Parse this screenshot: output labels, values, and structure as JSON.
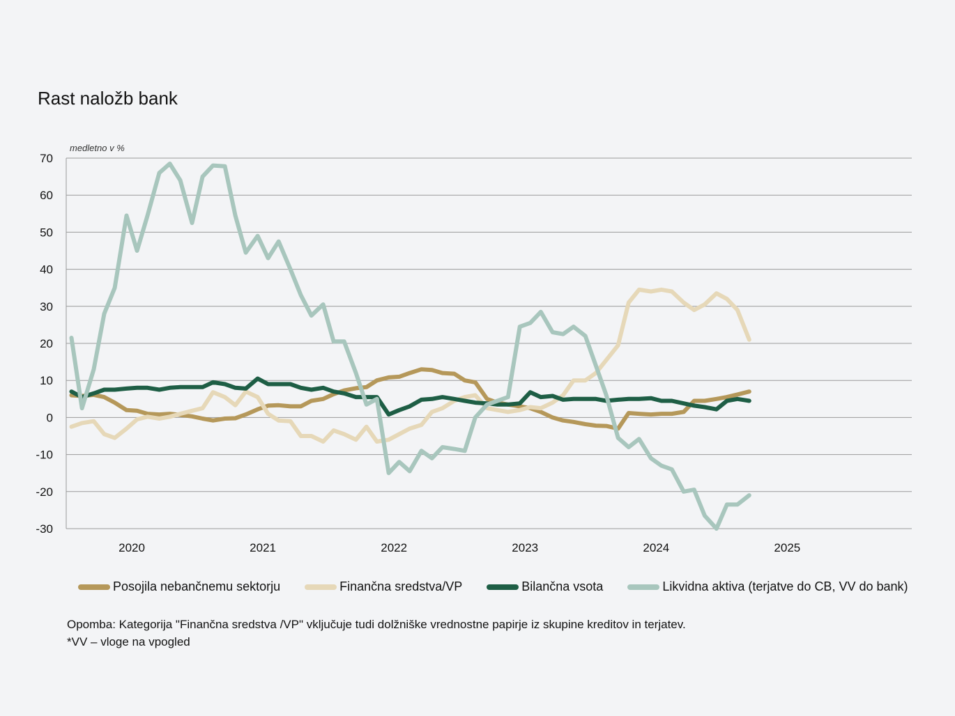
{
  "chart_data": {
    "type": "line",
    "title": "Rast naložb bank",
    "ylabel": "medletno v %",
    "ylim": [
      -30,
      70
    ],
    "yticks": [
      70,
      60,
      50,
      40,
      30,
      20,
      10,
      0,
      -10,
      -20,
      -30
    ],
    "xlim": [
      2019.5,
      2025.95
    ],
    "xticks": [
      2020,
      2021,
      2022,
      2023,
      2024,
      2025
    ],
    "x": [
      2019.54,
      2019.62,
      2019.71,
      2019.79,
      2019.87,
      2019.96,
      2020.04,
      2020.12,
      2020.21,
      2020.29,
      2020.37,
      2020.46,
      2020.54,
      2020.62,
      2020.71,
      2020.79,
      2020.87,
      2020.96,
      2021.04,
      2021.12,
      2021.21,
      2021.29,
      2021.37,
      2021.46,
      2021.54,
      2021.62,
      2021.71,
      2021.79,
      2021.87,
      2021.96,
      2022.04,
      2022.12,
      2022.21,
      2022.29,
      2022.37,
      2022.46,
      2022.54,
      2022.62,
      2022.71,
      2022.79,
      2022.87,
      2022.96,
      2023.04,
      2023.12,
      2023.21,
      2023.29,
      2023.37,
      2023.46,
      2023.54,
      2023.62,
      2023.71,
      2023.79,
      2023.87,
      2023.96,
      2024.04,
      2024.12,
      2024.21,
      2024.29,
      2024.37,
      2024.46,
      2024.54,
      2024.62,
      2024.71
    ],
    "series": [
      {
        "name": "Posojila nebančnemu sektorju",
        "color": "#b5985a",
        "values": [
          6.0,
          5.8,
          6.1,
          5.5,
          4.0,
          2.0,
          1.8,
          1.0,
          0.8,
          1.0,
          0.7,
          0.3,
          -0.3,
          -0.8,
          -0.3,
          -0.2,
          0.8,
          2.2,
          3.2,
          3.3,
          3.0,
          3.0,
          4.5,
          5.0,
          6.3,
          7.3,
          7.9,
          8.2,
          10.0,
          10.8,
          11.0,
          12.0,
          13.0,
          12.8,
          12.0,
          11.8,
          10.0,
          9.5,
          5.0,
          4.0,
          3.5,
          3.0,
          2.5,
          1.5,
          0.0,
          -0.8,
          -1.2,
          -1.8,
          -2.2,
          -2.3,
          -3.0,
          1.2,
          1.0,
          0.8,
          1.0,
          1.0,
          1.5,
          4.5,
          4.5,
          5.0,
          5.5,
          6.2,
          7.0
        ]
      },
      {
        "name": "Finančna sredstva/VP",
        "color": "#e6d8b8",
        "values": [
          -2.5,
          -1.5,
          -1.0,
          -4.5,
          -5.5,
          -3.0,
          -0.5,
          0.2,
          -0.3,
          0.2,
          1.0,
          1.8,
          2.5,
          6.8,
          5.5,
          3.3,
          7.0,
          5.5,
          1.0,
          -0.8,
          -1.0,
          -5.0,
          -5.0,
          -6.5,
          -3.5,
          -4.5,
          -6.0,
          -2.5,
          -6.5,
          -6.0,
          -4.5,
          -3.0,
          -2.0,
          1.5,
          2.5,
          4.5,
          5.5,
          6.0,
          2.5,
          2.0,
          1.5,
          2.0,
          2.8,
          2.5,
          4.0,
          6.0,
          10.0,
          10.0,
          12.0,
          15.5,
          19.5,
          31.0,
          34.5,
          34.0,
          34.5,
          34.0,
          31.0,
          29.0,
          30.5,
          33.5,
          32.0,
          29.0,
          21.0
        ]
      },
      {
        "name": "Bilančna vsota",
        "color": "#1e5e45",
        "values": [
          7.0,
          5.5,
          6.5,
          7.5,
          7.5,
          7.8,
          8.0,
          8.0,
          7.5,
          8.0,
          8.2,
          8.2,
          8.2,
          9.5,
          9.0,
          8.0,
          7.8,
          10.5,
          9.0,
          9.0,
          9.0,
          8.0,
          7.5,
          8.0,
          7.0,
          6.5,
          5.5,
          5.5,
          5.5,
          0.8,
          2.0,
          3.0,
          4.8,
          5.0,
          5.5,
          5.0,
          4.5,
          4.0,
          3.8,
          3.5,
          3.5,
          3.8,
          6.8,
          5.5,
          5.8,
          4.8,
          5.0,
          5.0,
          5.0,
          4.5,
          4.8,
          5.0,
          5.0,
          5.2,
          4.5,
          4.5,
          3.8,
          3.2,
          2.8,
          2.2,
          4.5,
          5.0,
          4.5
        ]
      },
      {
        "name": "Likvidna aktiva (terjatve do CB, VV do bank)",
        "color": "#a8c6bd",
        "values": [
          21.5,
          2.5,
          13.0,
          28.0,
          35.0,
          54.5,
          45.0,
          54.5,
          66.0,
          68.5,
          64.0,
          52.5,
          65.0,
          68.0,
          67.8,
          54.5,
          44.5,
          49.0,
          43.0,
          47.5,
          40.0,
          33.0,
          27.5,
          30.5,
          20.5,
          20.5,
          12.0,
          3.5,
          5.0,
          -15.0,
          -12.0,
          -14.5,
          -9.0,
          -11.0,
          -8.0,
          -8.5,
          -9.0,
          0.0,
          3.5,
          4.5,
          5.5,
          24.5,
          25.5,
          28.5,
          23.0,
          22.5,
          24.5,
          22.0,
          14.0,
          6.0,
          -5.5,
          -8.0,
          -5.8,
          -11.0,
          -13.0,
          -14.0,
          -20.0,
          -19.5,
          -26.5,
          -30.0,
          -23.5,
          -23.5,
          -21.0
        ]
      }
    ]
  },
  "legend": [
    {
      "label": "Posojila nebančnemu sektorju",
      "color": "#b5985a"
    },
    {
      "label": "Finančna sredstva/VP",
      "color": "#e6d8b8"
    },
    {
      "label": "Bilančna vsota",
      "color": "#1e5e45"
    },
    {
      "label": "Likvidna aktiva (terjatve do CB, VV do bank)",
      "color": "#a8c6bd"
    }
  ],
  "notes": {
    "line1": "Opomba: Kategorija \"Finančna sredstva /VP\"  vključuje tudi dolžniške vrednostne papirje iz skupine kreditov in terjatev.",
    "line2": "*VV – vloge na vpogled"
  }
}
